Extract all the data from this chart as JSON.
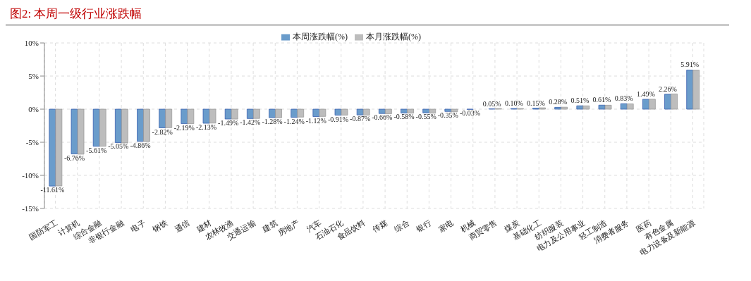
{
  "chart_data": {
    "type": "bar",
    "title": "图2:  本周一级行业涨跌幅",
    "categories": [
      "国防军工",
      "计算机",
      "综合金融",
      "非银行金融",
      "电子",
      "钢铁",
      "通信",
      "建材",
      "农林牧渔",
      "交通运输",
      "建筑",
      "房地产",
      "汽车",
      "石油石化",
      "食品饮料",
      "传媒",
      "综合",
      "银行",
      "家电",
      "机械",
      "商贸零售",
      "煤炭",
      "基础化工",
      "纺织服装",
      "电力及公用事业",
      "轻工制造",
      "消费者服务",
      "医药",
      "有色金属",
      "电力设备及新能源"
    ],
    "series": [
      {
        "name": "本周涨跌幅(%)",
        "color": "#6a9ccb",
        "values": [
          -11.61,
          -6.76,
          -5.61,
          -5.05,
          -4.86,
          -2.82,
          -2.19,
          -2.13,
          -1.49,
          -1.42,
          -1.28,
          -1.24,
          -1.12,
          -0.91,
          -0.87,
          -0.66,
          -0.58,
          -0.55,
          -0.35,
          -0.03,
          0.05,
          0.1,
          0.15,
          0.28,
          0.51,
          0.61,
          0.83,
          1.49,
          2.26,
          5.91
        ],
        "value_labels": [
          "-11.61%",
          "-6.76%",
          "-5.61%",
          "-5.05%",
          "-4.86%",
          "-2.82%",
          "-2.19%",
          "-2.13%",
          "-1.49%",
          "-1.42%",
          "-1.28%",
          "-1.24%",
          "-1.12%",
          "-0.91%",
          "-0.87%",
          "-0.66%",
          "-0.58%",
          "-0.55%",
          "-0.35%",
          "-0.03%",
          "0.05%",
          "0.10%",
          "0.15%",
          "0.28%",
          "0.51%",
          "0.61%",
          "0.83%",
          "1.49%",
          "2.26%",
          "5.91%"
        ]
      },
      {
        "name": "本月涨跌幅(%)",
        "color": "#bdbdbd",
        "values": [
          -11.6,
          -6.8,
          -5.6,
          -5.1,
          -4.9,
          -2.8,
          -2.2,
          -2.1,
          -1.5,
          -1.4,
          -1.3,
          -1.2,
          -1.1,
          -0.9,
          -0.9,
          -0.7,
          -0.6,
          -0.6,
          -0.4,
          0,
          0.1,
          0.1,
          0.2,
          0.3,
          0.5,
          0.6,
          0.8,
          1.5,
          2.3,
          5.9
        ]
      }
    ],
    "ylim": [
      -15,
      10
    ],
    "yticks": [
      {
        "value": -15,
        "label": "-15%"
      },
      {
        "value": -10,
        "label": "-10%"
      },
      {
        "value": -5,
        "label": "-5%"
      },
      {
        "value": 0,
        "label": "0%"
      },
      {
        "value": 5,
        "label": "5%"
      },
      {
        "value": 10,
        "label": "10%"
      }
    ],
    "grid": true,
    "legend": "top"
  }
}
